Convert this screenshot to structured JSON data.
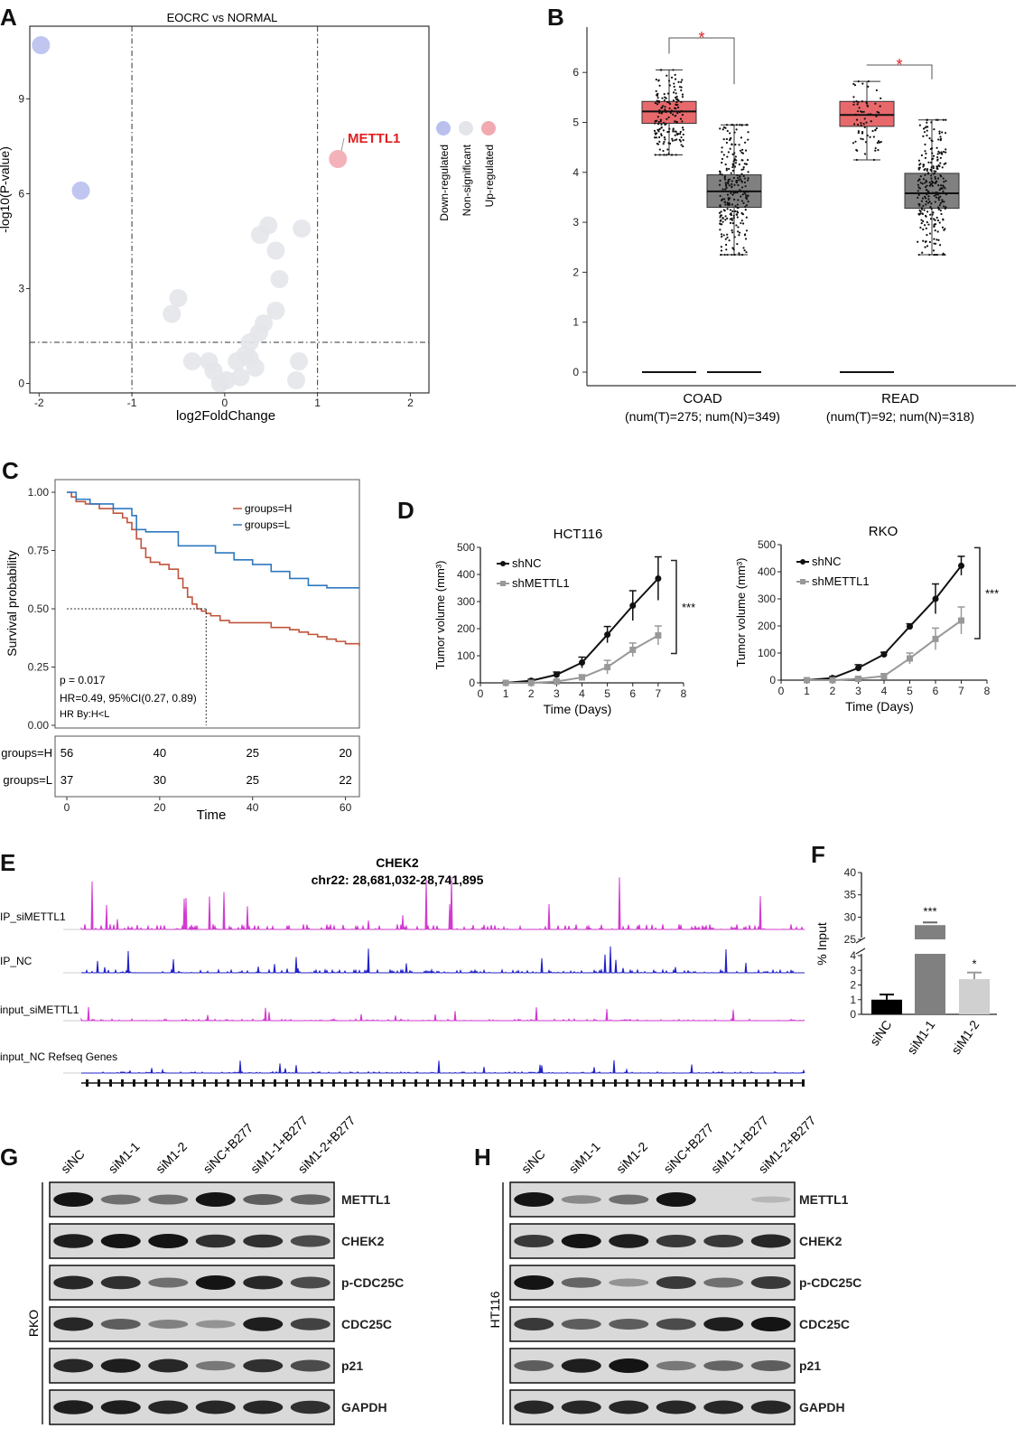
{
  "colors": {
    "down": "#b9c0ee",
    "ns": "#e3e5ea",
    "up": "#f2aab1",
    "highlight": "#e02020",
    "tumor_box": "#e8696c",
    "normal_box": "#808080",
    "km_H": "#c0533a",
    "km_L": "#2e78c0",
    "shNC": "#111111",
    "shMETTL1": "#999999",
    "track_pink": "#d23ad2",
    "track_blue": "#2323c8",
    "bar_siNC": "#000000",
    "bar_siM11": "#808080",
    "bar_siM12": "#d0d0d0"
  },
  "panelA": {
    "label": "A",
    "chart_data": {
      "type": "scatter",
      "title": "EOCRC vs NORMAL",
      "xlabel": "log2FoldChange",
      "ylabel": "-log10(P-value)",
      "xlim": [
        -2.1,
        2.2
      ],
      "ylim": [
        -0.3,
        11.3
      ],
      "xticks": [
        "-2",
        "-1",
        "0",
        "1",
        "2"
      ],
      "yticks": [
        "0",
        "3",
        "6",
        "9"
      ],
      "threshold_x": [
        -1,
        1
      ],
      "threshold_y": 1.3,
      "legend": [
        "Down-regulated",
        "Non-significant",
        "Up-regulated"
      ],
      "annotation": "METTL1",
      "series": [
        {
          "name": "Down-regulated",
          "points": [
            [
              -1.98,
              10.7
            ],
            [
              -1.55,
              6.1
            ]
          ]
        },
        {
          "name": "Non-significant",
          "points": [
            [
              0.47,
              5.0
            ],
            [
              0.38,
              4.7
            ],
            [
              0.83,
              4.9
            ],
            [
              0.55,
              4.2
            ],
            [
              0.59,
              3.3
            ],
            [
              -0.5,
              2.7
            ],
            [
              -0.57,
              2.2
            ],
            [
              0.55,
              2.3
            ],
            [
              0.42,
              1.9
            ],
            [
              0.37,
              1.6
            ],
            [
              0.27,
              1.3
            ],
            [
              0.22,
              0.9
            ],
            [
              -0.35,
              0.7
            ],
            [
              -0.17,
              0.7
            ],
            [
              0.27,
              0.8
            ],
            [
              0.13,
              0.7
            ],
            [
              -0.12,
              0.4
            ],
            [
              0.02,
              0.1
            ],
            [
              0.17,
              0.2
            ],
            [
              0.8,
              0.7
            ],
            [
              0.77,
              0.1
            ],
            [
              -0.05,
              0.0
            ],
            [
              0.33,
              0.5
            ]
          ]
        },
        {
          "name": "Up-regulated",
          "points": [
            [
              1.22,
              7.1
            ]
          ]
        }
      ]
    }
  },
  "panelB": {
    "label": "B",
    "chart_data": {
      "type": "box",
      "ylim": [
        0,
        6.6
      ],
      "yticks": [
        "0",
        "1",
        "2",
        "3",
        "4",
        "5",
        "6"
      ],
      "groups": [
        {
          "name": "COAD",
          "caption": "(num(T)=275; num(N)=349)",
          "tumor": {
            "q1": 4.98,
            "median": 5.22,
            "q3": 5.42,
            "wlo": 4.35,
            "whi": 6.05
          },
          "normal": {
            "q1": 3.3,
            "median": 3.62,
            "q3": 3.95,
            "wlo": 2.35,
            "whi": 4.95
          },
          "sig": "*"
        },
        {
          "name": "READ",
          "caption": "(num(T)=92; num(N)=318)",
          "tumor": {
            "q1": 4.92,
            "median": 5.15,
            "q3": 5.42,
            "wlo": 4.25,
            "whi": 5.82
          },
          "normal": {
            "q1": 3.28,
            "median": 3.58,
            "q3": 3.98,
            "wlo": 2.35,
            "whi": 5.05
          },
          "sig": "*"
        }
      ]
    }
  },
  "panelC": {
    "label": "C",
    "chart_data": {
      "type": "line",
      "ylabel": "Survival probability",
      "xlabel": "Time",
      "xlim": [
        0,
        63
      ],
      "ylim": [
        0,
        1
      ],
      "yticks": [
        "0.00",
        "0.25",
        "0.50",
        "0.75",
        "1.00"
      ],
      "xticks": [
        "0",
        "20",
        "40",
        "60"
      ],
      "series": [
        {
          "name": "groups=H",
          "x": [
            0,
            1,
            2,
            4,
            6,
            7,
            9,
            10,
            12,
            13,
            14,
            15,
            16,
            17,
            18,
            20,
            22,
            24,
            25,
            26,
            27,
            28,
            29,
            30,
            31,
            33,
            35,
            37,
            40,
            44,
            46,
            48,
            50,
            52,
            54,
            56,
            58,
            60,
            63
          ],
          "y": [
            1,
            0.98,
            0.96,
            0.95,
            0.95,
            0.93,
            0.93,
            0.91,
            0.89,
            0.87,
            0.84,
            0.8,
            0.76,
            0.72,
            0.7,
            0.69,
            0.67,
            0.63,
            0.59,
            0.55,
            0.52,
            0.5,
            0.49,
            0.48,
            0.47,
            0.45,
            0.44,
            0.44,
            0.44,
            0.42,
            0.42,
            0.41,
            0.4,
            0.39,
            0.38,
            0.37,
            0.36,
            0.35,
            0.34
          ]
        },
        {
          "name": "groups=L",
          "x": [
            0,
            2,
            5,
            10,
            14,
            15,
            17,
            20,
            24,
            28,
            32,
            36,
            40,
            44,
            48,
            52,
            56,
            63
          ],
          "y": [
            1,
            0.97,
            0.95,
            0.93,
            0.9,
            0.84,
            0.83,
            0.83,
            0.77,
            0.77,
            0.74,
            0.71,
            0.69,
            0.66,
            0.63,
            0.6,
            0.59,
            0.59
          ]
        }
      ],
      "annotations": [
        "p = 0.017",
        "HR=0.49, 95%CI(0.27, 0.89)",
        "HR By:H<L"
      ],
      "median_marker": 30,
      "risk_table": {
        "rows": [
          {
            "label": "groups=H",
            "values": [
              "56",
              "40",
              "25",
              "20"
            ]
          },
          {
            "label": "groups=L",
            "values": [
              "37",
              "30",
              "25",
              "22"
            ]
          }
        ]
      }
    }
  },
  "panelD": {
    "label": "D",
    "chart_data": [
      {
        "type": "line",
        "title": "HCT116",
        "xlabel": "Time (Days)",
        "ylabel": "Tumor volume (mm³)",
        "xlim": [
          0,
          8
        ],
        "ylim": [
          0,
          500
        ],
        "xticks": [
          "0",
          "1",
          "2",
          "3",
          "4",
          "5",
          "6",
          "7",
          "8"
        ],
        "yticks": [
          "0",
          "100",
          "200",
          "300",
          "400",
          "500"
        ],
        "sig": "***",
        "series": [
          {
            "name": "shNC",
            "x": [
              1,
              2,
              3,
              4,
              5,
              6,
              7
            ],
            "y": [
              0,
              8,
              30,
              75,
              178,
              285,
              385
            ],
            "err": [
              2,
              5,
              10,
              20,
              30,
              55,
              80
            ]
          },
          {
            "name": "shMETTL1",
            "x": [
              1,
              2,
              3,
              4,
              5,
              6,
              7
            ],
            "y": [
              0,
              0,
              5,
              20,
              58,
              122,
              175
            ],
            "err": [
              0,
              0,
              5,
              10,
              25,
              25,
              35
            ]
          }
        ]
      },
      {
        "type": "line",
        "title": "RKO",
        "xlabel": "Time (Days)",
        "ylabel": "Tumor volume (mm³)",
        "xlim": [
          0,
          8
        ],
        "ylim": [
          0,
          500
        ],
        "xticks": [
          "0",
          "1",
          "2",
          "3",
          "4",
          "5",
          "6",
          "7",
          "8"
        ],
        "yticks": [
          "0",
          "100",
          "200",
          "300",
          "400",
          "500"
        ],
        "sig": "***",
        "series": [
          {
            "name": "shNC",
            "x": [
              1,
              2,
              3,
              4,
              5,
              6,
              7
            ],
            "y": [
              0,
              8,
              45,
              95,
              198,
              300,
              422
            ],
            "err": [
              2,
              5,
              12,
              8,
              10,
              55,
              35
            ]
          },
          {
            "name": "shMETTL1",
            "x": [
              1,
              2,
              3,
              4,
              5,
              6,
              7
            ],
            "y": [
              0,
              0,
              5,
              15,
              80,
              152,
              220
            ],
            "err": [
              0,
              0,
              5,
              8,
              20,
              40,
              50
            ]
          }
        ]
      }
    ]
  },
  "panelE": {
    "label": "E",
    "title": "CHEK2",
    "coords": "chr22: 28,681,032-28,741,895",
    "tracks": [
      "IP_siMETTL1",
      "IP_NC",
      "input_siMETTL1",
      "input_NC Refseq Genes"
    ]
  },
  "panelF": {
    "label": "F",
    "chart_data": {
      "type": "bar",
      "ylabel": "% Input",
      "categories": [
        "siNC",
        "siM1-1",
        "siM1-2"
      ],
      "values": [
        1.0,
        28.2,
        2.4
      ],
      "err": [
        0.35,
        0.6,
        0.45
      ],
      "sig": [
        "",
        "***",
        "*"
      ],
      "yticks_upper": [
        "25",
        "30",
        "35",
        "40"
      ],
      "yticks_lower": [
        "0",
        "1",
        "2",
        "3",
        "4"
      ]
    }
  },
  "panelG": {
    "label": "G",
    "cell_line": "RKO",
    "lanes": [
      "siNC",
      "siM1-1",
      "siM1-2",
      "siNC+B277",
      "siM1-1+B277",
      "siM1-2+B277"
    ],
    "proteins": [
      "METTL1",
      "CHEK2",
      "p-CDC25C",
      "CDC25C",
      "p21",
      "GAPDH"
    ],
    "intensity": [
      [
        1.0,
        0.5,
        0.5,
        1.0,
        0.6,
        0.55
      ],
      [
        0.95,
        1.0,
        1.0,
        0.85,
        0.85,
        0.7
      ],
      [
        0.9,
        0.85,
        0.5,
        1.0,
        0.9,
        0.7
      ],
      [
        0.9,
        0.6,
        0.4,
        0.3,
        0.95,
        0.75
      ],
      [
        0.9,
        0.95,
        0.9,
        0.45,
        0.85,
        0.7
      ],
      [
        0.95,
        0.95,
        0.9,
        0.9,
        0.9,
        0.85
      ]
    ]
  },
  "panelH": {
    "label": "H",
    "cell_line": "HT116",
    "lanes": [
      "siNC",
      "siM1-1",
      "siM1-2",
      "siNC+B277",
      "siM1-1+B277",
      "siM1-2+B277"
    ],
    "proteins": [
      "METTL1",
      "CHEK2",
      "p-CDC25C",
      "CDC25C",
      "p21",
      "GAPDH"
    ],
    "intensity": [
      [
        1.0,
        0.35,
        0.5,
        1.0,
        0.05,
        0.1
      ],
      [
        0.8,
        1.0,
        0.95,
        0.8,
        0.8,
        0.9
      ],
      [
        1.0,
        0.55,
        0.3,
        0.8,
        0.5,
        0.8
      ],
      [
        0.8,
        0.6,
        0.6,
        0.7,
        0.95,
        1.0
      ],
      [
        0.6,
        0.95,
        1.0,
        0.45,
        0.55,
        0.6
      ],
      [
        0.9,
        0.9,
        0.9,
        0.9,
        0.9,
        0.9
      ]
    ]
  }
}
